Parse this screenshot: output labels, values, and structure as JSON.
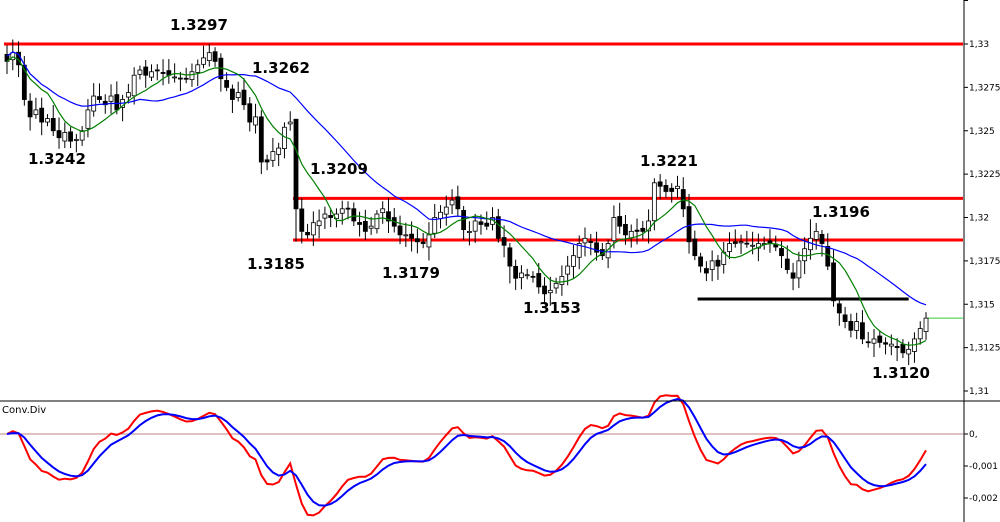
{
  "chart_data": [
    {
      "type": "candlestick",
      "y_ticks": [
        "1,31",
        "1,3125",
        "1,315",
        "1,3175",
        "1,32",
        "1,3225",
        "1,325",
        "1,3275",
        "1,33"
      ],
      "y_tick_values": [
        1.31,
        1.3125,
        1.315,
        1.3175,
        1.32,
        1.3225,
        1.325,
        1.3275,
        1.33
      ],
      "ylim": [
        1.3097,
        1.3312
      ],
      "bar_count": 160,
      "series_close": [
        1.329,
        1.3295,
        1.3288,
        1.3268,
        1.3258,
        1.3262,
        1.3255,
        1.3257,
        1.325,
        1.3246,
        1.3249,
        1.3244,
        1.3245,
        1.325,
        1.3262,
        1.327,
        1.3268,
        1.3265,
        1.327,
        1.3262,
        1.3268,
        1.3272,
        1.3282,
        1.3285,
        1.3282,
        1.3284,
        1.3285,
        1.3283,
        1.3282,
        1.3281,
        1.328,
        1.328,
        1.3284,
        1.3288,
        1.3292,
        1.3295,
        1.329,
        1.328,
        1.3275,
        1.3268,
        1.3272,
        1.3265,
        1.3255,
        1.3258,
        1.3232,
        1.3232,
        1.3238,
        1.324,
        1.3252,
        1.3255,
        1.3205,
        1.3192,
        1.319,
        1.3197,
        1.3198,
        1.3202,
        1.32,
        1.3202,
        1.3205,
        1.3205,
        1.3198,
        1.3196,
        1.3192,
        1.3195,
        1.3202,
        1.3205,
        1.3198,
        1.3195,
        1.319,
        1.319,
        1.3188,
        1.3186,
        1.3185,
        1.319,
        1.32,
        1.3203,
        1.3206,
        1.321,
        1.3205,
        1.3193,
        1.3192,
        1.3198,
        1.3196,
        1.3195,
        1.32,
        1.3188,
        1.3184,
        1.3172,
        1.3165,
        1.3168,
        1.3167,
        1.3166,
        1.316,
        1.3156,
        1.3158,
        1.3162,
        1.3166,
        1.3172,
        1.3178,
        1.3185,
        1.3188,
        1.3186,
        1.318,
        1.3178,
        1.3185,
        1.32,
        1.3195,
        1.319,
        1.3192,
        1.3192,
        1.3192,
        1.3198,
        1.322,
        1.3218,
        1.3215,
        1.3215,
        1.3218,
        1.3205,
        1.3186,
        1.3178,
        1.3172,
        1.3168,
        1.3175,
        1.3172,
        1.318,
        1.3185,
        1.3185,
        1.3186,
        1.3185,
        1.3184,
        1.3185,
        1.3185,
        1.3185,
        1.3183,
        1.3178,
        1.317,
        1.3165,
        1.3175,
        1.3182,
        1.3188,
        1.3192,
        1.3185,
        1.3172,
        1.3152,
        1.3145,
        1.314,
        1.3135,
        1.314,
        1.313,
        1.3128,
        1.313,
        1.3128,
        1.3127,
        1.3127,
        1.3125,
        1.3122,
        1.3124,
        1.313,
        1.3136,
        1.3142
      ],
      "series": [
        {
          "name": "",
          "color": "#008000",
          "values": "ma_fast"
        },
        {
          "name": "",
          "color": "#0000ff",
          "values": "ma_slow"
        }
      ],
      "horizontal_lines": [
        {
          "value": 1.33,
          "color": "#ff0000",
          "from_bar": 0,
          "to_bar": "end"
        },
        {
          "value": 1.3211,
          "color": "#ff0000",
          "from_bar": 50,
          "to_bar": "end"
        },
        {
          "value": 1.3187,
          "color": "#ff0000",
          "from_bar": 50,
          "to_bar": "end"
        },
        {
          "value": 1.3153,
          "color": "#000000",
          "from_bar": 120,
          "to_bar": 156
        }
      ],
      "current_price_line": {
        "value": 1.3142,
        "color": "#32cd32"
      },
      "annotations": [
        {
          "text": "1.3297"
        },
        {
          "text": "1.3262"
        },
        {
          "text": "1.3242"
        },
        {
          "text": "1.3209"
        },
        {
          "text": "1.3185"
        },
        {
          "text": "1.3179"
        },
        {
          "text": "1.3221"
        },
        {
          "text": "1.3153"
        },
        {
          "text": "1.3196"
        },
        {
          "text": "1.3120"
        }
      ]
    },
    {
      "type": "line",
      "title": "Conv.Div",
      "y_ticks": [
        "0,",
        "-0,001",
        "-0,002"
      ],
      "y_tick_values": [
        0,
        -0.001,
        -0.002
      ],
      "ylim": [
        -0.00225,
        0.0008
      ],
      "zero_line_color": "#c08080",
      "series": [
        {
          "name": "",
          "color": "#ff0000",
          "values": "osc_red"
        },
        {
          "name": "",
          "color": "#0000ff",
          "values": "osc_blue"
        }
      ]
    }
  ]
}
